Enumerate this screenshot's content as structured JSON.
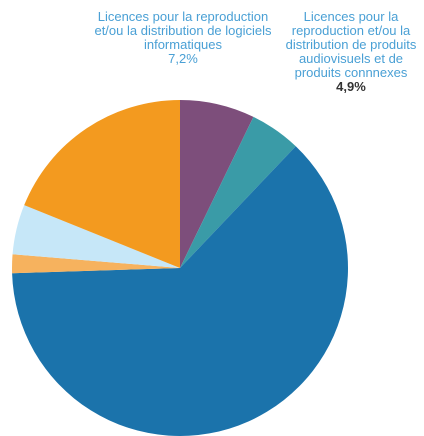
{
  "chart_data": {
    "type": "pie",
    "categories": [
      "Licences pour la reproduction et/ou la distribution de logiciels informatiques",
      "Licences pour la reproduction et/ou la distribution de produits audiovisuels et de produits connnexes",
      null,
      null,
      null,
      null
    ],
    "values": [
      7.2,
      4.9,
      62.4,
      1.8,
      4.8,
      18.9
    ],
    "value_labels": [
      "7,2%",
      "4,9%",
      null,
      null,
      null,
      null
    ],
    "colors": [
      "#7d4e7b",
      "#3a9ba7",
      "#1b73ab",
      "#f6b25e",
      "#c6e7f8",
      "#f39a1f"
    ]
  }
}
